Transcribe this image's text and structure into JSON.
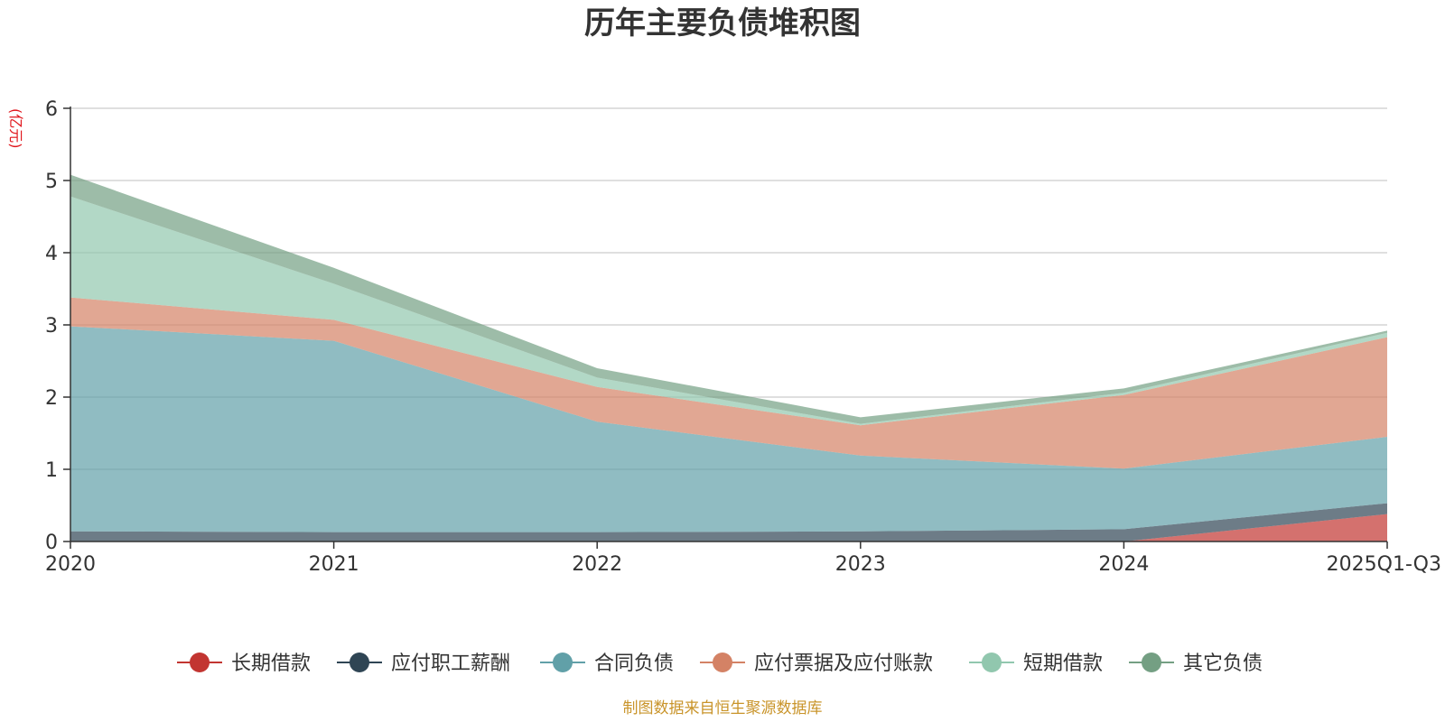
{
  "chart_data": {
    "type": "area",
    "stacked": true,
    "title": "历年主要负债堆积图",
    "unit": "(亿元)",
    "xlabel": "",
    "ylabel": "(亿元)",
    "categories": [
      "2020",
      "2021",
      "2022",
      "2023",
      "2024",
      "2025Q1-Q3"
    ],
    "ylim": [
      0,
      6
    ],
    "yticks": [
      "0",
      "1",
      "2",
      "3",
      "4",
      "5",
      "6"
    ],
    "grid": true,
    "legend_position": "bottom",
    "series": [
      {
        "name": "长期借款",
        "color": "#c23531",
        "values": [
          0,
          0,
          0,
          0,
          0,
          0.38
        ]
      },
      {
        "name": "应付职工薪酬",
        "color": "#2f4554",
        "values": [
          0.14,
          0.13,
          0.13,
          0.14,
          0.17,
          0.15
        ]
      },
      {
        "name": "合同负债",
        "color": "#61a0a8",
        "values": [
          2.84,
          2.65,
          1.53,
          1.05,
          0.84,
          0.92
        ]
      },
      {
        "name": "应付票据及应付账款",
        "color": "#d48265",
        "values": [
          0.4,
          0.29,
          0.48,
          0.42,
          1.02,
          1.38
        ]
      },
      {
        "name": "短期借款",
        "color": "#91c7ae",
        "values": [
          1.4,
          0.5,
          0.13,
          0.02,
          0.03,
          0.06
        ]
      },
      {
        "name": "其它负债",
        "color": "#749f83",
        "values": [
          0.3,
          0.22,
          0.13,
          0.09,
          0.06,
          0.03
        ]
      }
    ],
    "source": "制图数据来自恒生聚源数据库"
  }
}
